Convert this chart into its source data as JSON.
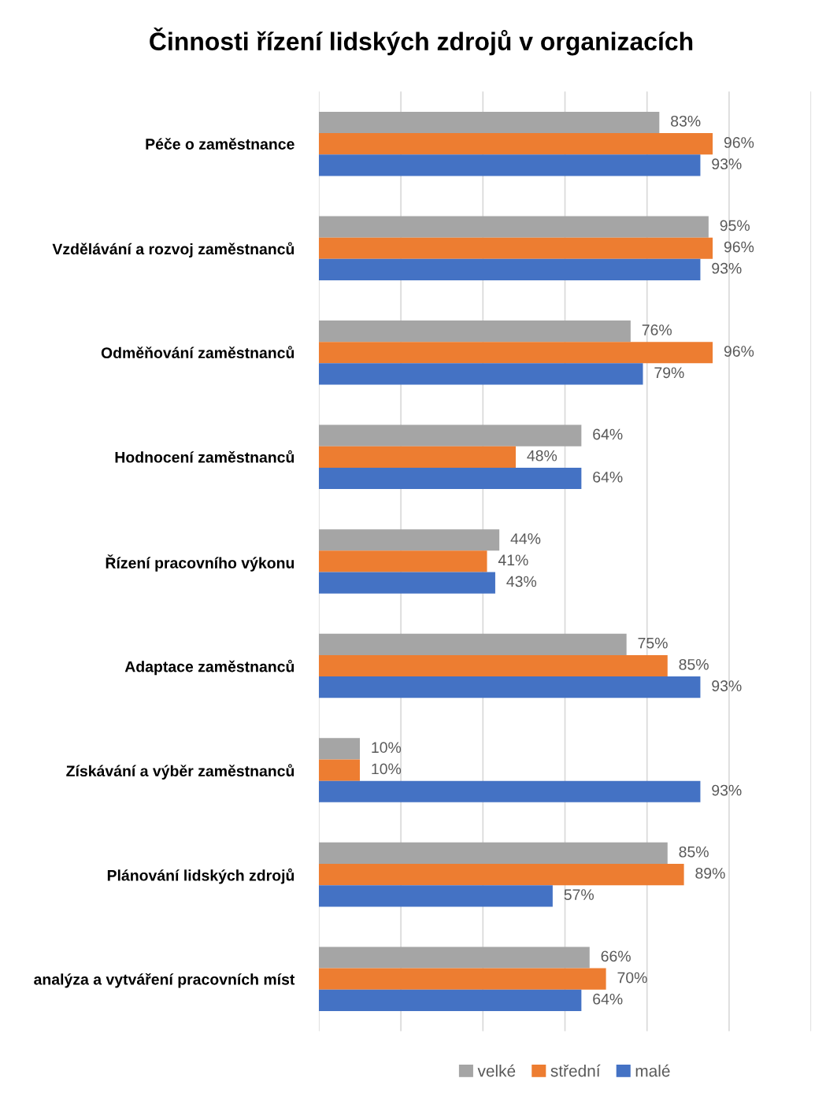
{
  "chart_data": {
    "type": "bar",
    "orientation": "horizontal",
    "title": "Činnosti řízení lidských zdrojů v organizacích",
    "categories": [
      "Péče o zaměstnance",
      "Vzdělávání a rozvoj zaměstnanců",
      "Odměňování zaměstnanců",
      "Hodnocení zaměstnanců",
      "Řízení pracovního výkonu",
      "Adaptace zaměstnanců",
      "Získávání a výběr zaměstnanců",
      "Plánování lidských zdrojů",
      "analýza a vytváření pracovních míst"
    ],
    "series": [
      {
        "name": "velké",
        "color": "#a5a5a5",
        "values": [
          83,
          95,
          76,
          64,
          44,
          75,
          10,
          85,
          66
        ],
        "value_labels": [
          "83%",
          "95%",
          "76%",
          "64%",
          "44%",
          "75%",
          "10%",
          "85%",
          "66%"
        ]
      },
      {
        "name": "střední",
        "color": "#ed7d31",
        "values": [
          96,
          96,
          96,
          48,
          41,
          85,
          10,
          89,
          70
        ],
        "value_labels": [
          "96%",
          "96%",
          "96%",
          "48%",
          "41%",
          "85%",
          "10%",
          "89%",
          "70%"
        ]
      },
      {
        "name": "malé",
        "color": "#4472c4",
        "values": [
          93,
          93,
          79,
          64,
          43,
          93,
          93,
          57,
          64
        ],
        "value_labels": [
          "93%",
          "93%",
          "79%",
          "64%",
          "43%",
          "93%",
          "93%",
          "57%",
          "64%"
        ]
      }
    ],
    "xlim": [
      0,
      120
    ],
    "xticks": [
      {
        "value": 0,
        "label": null
      },
      {
        "value": 20,
        "label": null
      },
      {
        "value": 40,
        "label": null
      },
      {
        "value": 60,
        "label": null
      },
      {
        "value": 80,
        "label": null
      },
      {
        "value": 100,
        "label": null
      },
      {
        "value": 120,
        "label": null
      }
    ],
    "grid": "x",
    "legend": "bottom",
    "tick_labels": "y"
  }
}
